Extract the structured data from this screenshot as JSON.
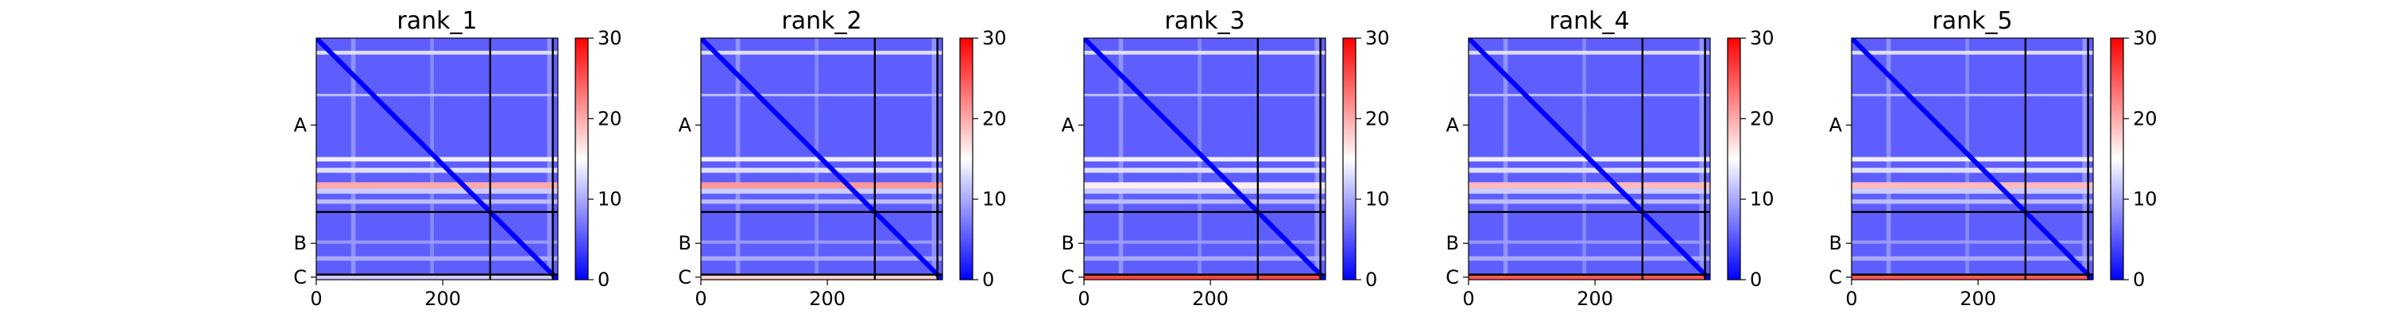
{
  "chart_data": [
    {
      "type": "heatmap",
      "title": "rank_1",
      "x_ticks": [
        0,
        200
      ],
      "xlim": [
        0,
        382
      ],
      "y_chain_labels": [
        "A",
        "B",
        "C"
      ],
      "chain_boundaries": [
        275,
        374
      ],
      "colorbar": {
        "range": [
          0,
          30
        ],
        "ticks": [
          0,
          10,
          20,
          30
        ],
        "colors": [
          "#0000ff",
          "#ffffff",
          "#ff0000"
        ]
      },
      "background_value": 5.5,
      "row_bands": [
        {
          "range": [
            20,
            26
          ],
          "value": 13
        },
        {
          "range": [
            88,
            92
          ],
          "value": 11
        },
        {
          "range": [
            188,
            195
          ],
          "value": 14
        },
        {
          "range": [
            205,
            213
          ],
          "value": 13
        },
        {
          "range": [
            228,
            238
          ],
          "value": 20
        },
        {
          "range": [
            238,
            246
          ],
          "value": 12
        },
        {
          "range": [
            255,
            262
          ],
          "value": 11
        },
        {
          "range": [
            320,
            325
          ],
          "value": 9
        },
        {
          "range": [
            345,
            352
          ],
          "value": 10
        },
        {
          "range": [
            374,
            384
          ],
          "value": 12
        }
      ],
      "col_bands": [
        {
          "range": [
            55,
            62
          ],
          "value": 11
        },
        {
          "range": [
            180,
            186
          ],
          "value": 10
        },
        {
          "range": [
            365,
            372
          ],
          "value": 11
        }
      ]
    },
    {
      "type": "heatmap",
      "title": "rank_2",
      "x_ticks": [
        0,
        200
      ],
      "xlim": [
        0,
        382
      ],
      "y_chain_labels": [
        "A",
        "B",
        "C"
      ],
      "chain_boundaries": [
        275,
        374
      ],
      "colorbar": {
        "range": [
          0,
          30
        ],
        "ticks": [
          0,
          10,
          20,
          30
        ],
        "colors": [
          "#0000ff",
          "#ffffff",
          "#ff0000"
        ]
      },
      "background_value": 5.5,
      "row_bands": [
        {
          "range": [
            20,
            26
          ],
          "value": 13
        },
        {
          "range": [
            88,
            92
          ],
          "value": 11
        },
        {
          "range": [
            188,
            195
          ],
          "value": 14
        },
        {
          "range": [
            205,
            213
          ],
          "value": 13
        },
        {
          "range": [
            228,
            238
          ],
          "value": 21
        },
        {
          "range": [
            238,
            246
          ],
          "value": 12
        },
        {
          "range": [
            255,
            262
          ],
          "value": 11
        },
        {
          "range": [
            320,
            325
          ],
          "value": 9
        },
        {
          "range": [
            345,
            352
          ],
          "value": 10
        },
        {
          "range": [
            374,
            384
          ],
          "value": 18
        }
      ],
      "col_bands": [
        {
          "range": [
            55,
            62
          ],
          "value": 11
        },
        {
          "range": [
            180,
            186
          ],
          "value": 10
        },
        {
          "range": [
            365,
            372
          ],
          "value": 11
        }
      ]
    },
    {
      "type": "heatmap",
      "title": "rank_3",
      "x_ticks": [
        0,
        200
      ],
      "xlim": [
        0,
        382
      ],
      "y_chain_labels": [
        "A",
        "B",
        "C"
      ],
      "chain_boundaries": [
        275,
        374
      ],
      "colorbar": {
        "range": [
          0,
          30
        ],
        "ticks": [
          0,
          10,
          20,
          30
        ],
        "colors": [
          "#0000ff",
          "#ffffff",
          "#ff0000"
        ]
      },
      "background_value": 5.5,
      "row_bands": [
        {
          "range": [
            20,
            26
          ],
          "value": 13
        },
        {
          "range": [
            88,
            92
          ],
          "value": 11
        },
        {
          "range": [
            188,
            195
          ],
          "value": 14
        },
        {
          "range": [
            205,
            213
          ],
          "value": 13
        },
        {
          "range": [
            228,
            238
          ],
          "value": 16
        },
        {
          "range": [
            238,
            246
          ],
          "value": 12
        },
        {
          "range": [
            255,
            262
          ],
          "value": 11
        },
        {
          "range": [
            320,
            325
          ],
          "value": 9
        },
        {
          "range": [
            345,
            352
          ],
          "value": 10
        },
        {
          "range": [
            374,
            384
          ],
          "value": 26
        }
      ],
      "col_bands": [
        {
          "range": [
            55,
            62
          ],
          "value": 11
        },
        {
          "range": [
            180,
            186
          ],
          "value": 10
        },
        {
          "range": [
            365,
            372
          ],
          "value": 11
        }
      ]
    },
    {
      "type": "heatmap",
      "title": "rank_4",
      "x_ticks": [
        0,
        200
      ],
      "xlim": [
        0,
        382
      ],
      "y_chain_labels": [
        "A",
        "B",
        "C"
      ],
      "chain_boundaries": [
        275,
        374
      ],
      "colorbar": {
        "range": [
          0,
          30
        ],
        "ticks": [
          0,
          10,
          20,
          30
        ],
        "colors": [
          "#0000ff",
          "#ffffff",
          "#ff0000"
        ]
      },
      "background_value": 5.5,
      "row_bands": [
        {
          "range": [
            20,
            26
          ],
          "value": 13
        },
        {
          "range": [
            88,
            92
          ],
          "value": 11
        },
        {
          "range": [
            188,
            195
          ],
          "value": 14
        },
        {
          "range": [
            205,
            213
          ],
          "value": 13
        },
        {
          "range": [
            228,
            238
          ],
          "value": 19
        },
        {
          "range": [
            238,
            246
          ],
          "value": 12
        },
        {
          "range": [
            255,
            262
          ],
          "value": 11
        },
        {
          "range": [
            320,
            325
          ],
          "value": 9
        },
        {
          "range": [
            345,
            352
          ],
          "value": 10
        },
        {
          "range": [
            374,
            384
          ],
          "value": 25
        }
      ],
      "col_bands": [
        {
          "range": [
            55,
            62
          ],
          "value": 11
        },
        {
          "range": [
            180,
            186
          ],
          "value": 10
        },
        {
          "range": [
            365,
            372
          ],
          "value": 11
        }
      ]
    },
    {
      "type": "heatmap",
      "title": "rank_5",
      "x_ticks": [
        0,
        200
      ],
      "xlim": [
        0,
        382
      ],
      "y_chain_labels": [
        "A",
        "B",
        "C"
      ],
      "chain_boundaries": [
        275,
        374
      ],
      "colorbar": {
        "range": [
          0,
          30
        ],
        "ticks": [
          0,
          10,
          20,
          30
        ],
        "colors": [
          "#0000ff",
          "#ffffff",
          "#ff0000"
        ]
      },
      "background_value": 5.5,
      "row_bands": [
        {
          "range": [
            20,
            26
          ],
          "value": 13
        },
        {
          "range": [
            88,
            92
          ],
          "value": 11
        },
        {
          "range": [
            188,
            195
          ],
          "value": 14
        },
        {
          "range": [
            205,
            213
          ],
          "value": 13
        },
        {
          "range": [
            228,
            238
          ],
          "value": 19
        },
        {
          "range": [
            238,
            246
          ],
          "value": 12
        },
        {
          "range": [
            255,
            262
          ],
          "value": 11
        },
        {
          "range": [
            320,
            325
          ],
          "value": 9
        },
        {
          "range": [
            345,
            352
          ],
          "value": 10
        },
        {
          "range": [
            374,
            384
          ],
          "value": 25
        }
      ],
      "col_bands": [
        {
          "range": [
            55,
            62
          ],
          "value": 11
        },
        {
          "range": [
            180,
            186
          ],
          "value": 10
        },
        {
          "range": [
            365,
            372
          ],
          "value": 11
        }
      ]
    }
  ]
}
